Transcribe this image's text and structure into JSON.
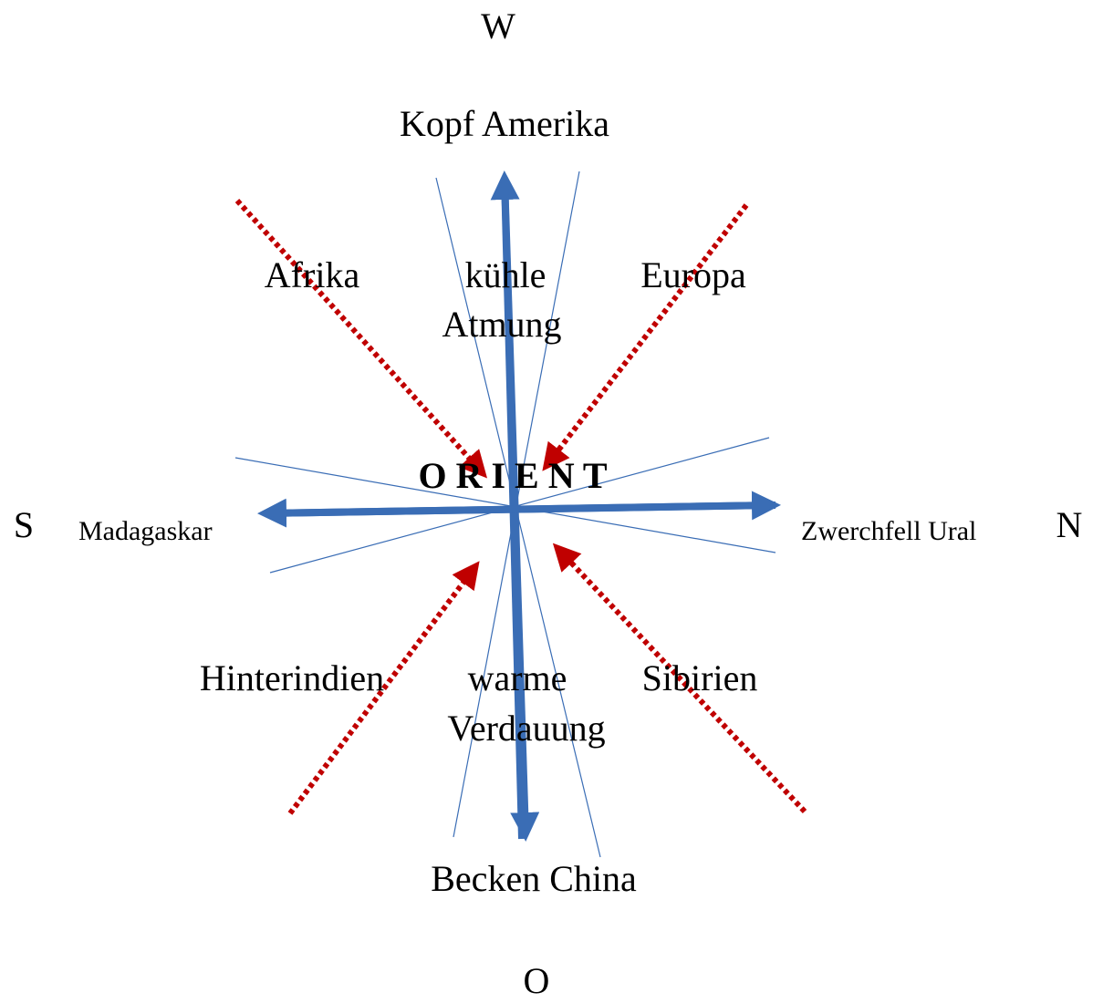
{
  "compass": {
    "west": "W",
    "east": "O",
    "south": "S",
    "north": "N"
  },
  "center": "O R I E N T",
  "labels": {
    "top": "Kopf Amerika",
    "bottom": "Becken China",
    "left": "Madagaskar",
    "right": "Zwerchfell Ural",
    "upper_left": "Afrika",
    "upper_right": "Europa",
    "upper_middle": [
      "kühle",
      "Atmung"
    ],
    "lower_left": "Hinterindien",
    "lower_right": "Sibirien",
    "lower_middle": [
      "warme",
      "Verdauung"
    ]
  }
}
